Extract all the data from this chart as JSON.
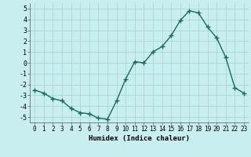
{
  "x": [
    0,
    1,
    2,
    3,
    4,
    5,
    6,
    7,
    8,
    9,
    10,
    11,
    12,
    13,
    14,
    15,
    16,
    17,
    18,
    19,
    20,
    21,
    22,
    23
  ],
  "y": [
    -2.5,
    -2.8,
    -3.3,
    -3.5,
    -4.2,
    -4.6,
    -4.7,
    -5.1,
    -5.2,
    -3.5,
    -1.5,
    0.1,
    0.0,
    1.0,
    1.5,
    2.5,
    3.9,
    4.8,
    4.6,
    3.3,
    2.3,
    0.5,
    -2.3,
    -2.8
  ],
  "xlim": [
    -0.5,
    23.5
  ],
  "ylim": [
    -5.5,
    5.5
  ],
  "yticks": [
    -5,
    -4,
    -3,
    -2,
    -1,
    0,
    1,
    2,
    3,
    4,
    5
  ],
  "xtick_labels": [
    "0",
    "1",
    "2",
    "3",
    "4",
    "5",
    "6",
    "7",
    "8",
    "9",
    "10",
    "11",
    "12",
    "13",
    "14",
    "15",
    "16",
    "17",
    "18",
    "19",
    "20",
    "21",
    "22",
    "23"
  ],
  "xlabel": "Humidex (Indice chaleur)",
  "line_color": "#1a6b5a",
  "bg_color": "#c8eef0",
  "grid_color": "#a8d8d8",
  "marker": "+",
  "marker_size": 4,
  "line_width": 1.0,
  "tick_fontsize": 5.5,
  "xlabel_fontsize": 6.5
}
